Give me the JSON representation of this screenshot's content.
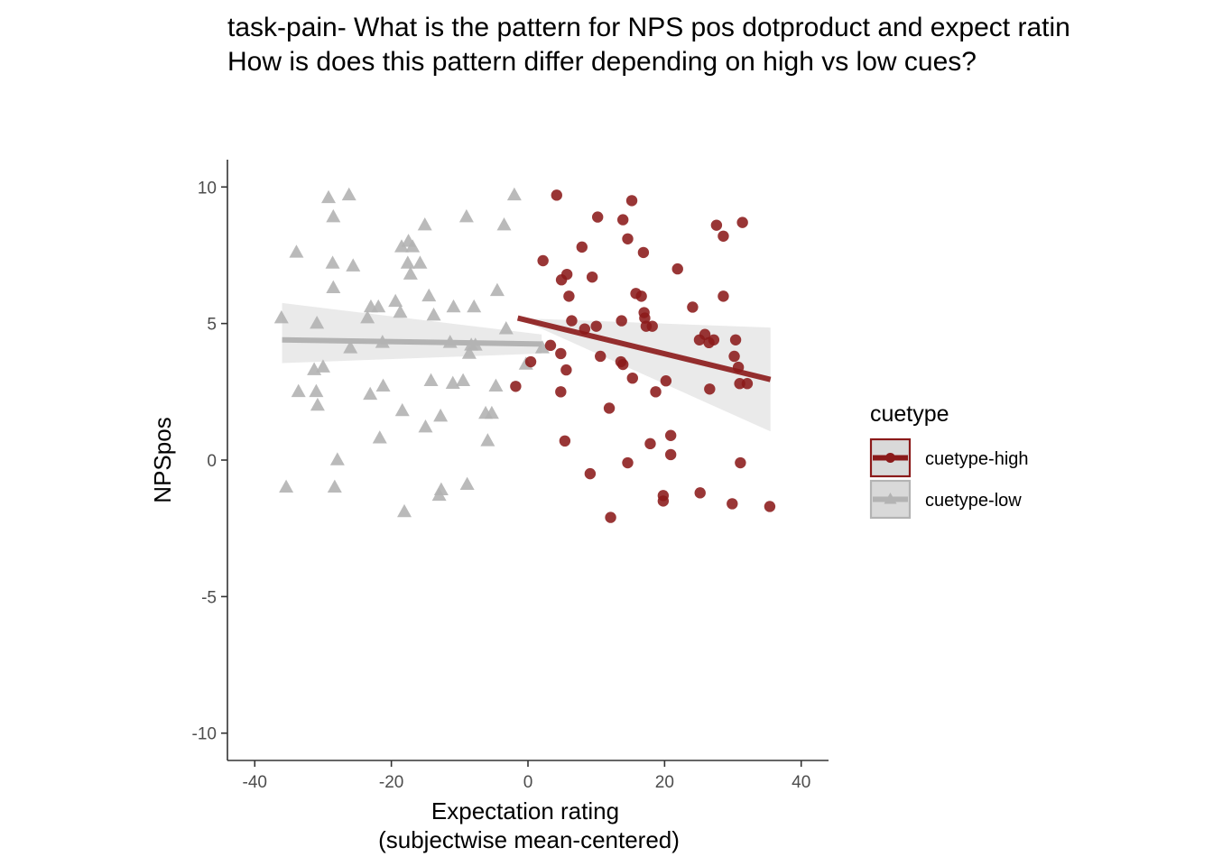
{
  "chart_data": {
    "type": "scatter",
    "title": [
      "task-pain- What is the pattern for NPS pos dotproduct and expect ratin",
      "How is does this pattern differ depending on high vs low cues?"
    ],
    "xlabel": [
      "Expectation rating",
      "(subjectwise mean-centered)"
    ],
    "ylabel": "NPSpos",
    "xlim": [
      -44,
      44
    ],
    "ylim": [
      -11,
      11
    ],
    "x_ticks": [
      -40,
      -20,
      0,
      20,
      40
    ],
    "y_ticks": [
      -10,
      -5,
      0,
      5,
      10
    ],
    "grid": false,
    "legend": {
      "title": "cuetype",
      "position": "right"
    },
    "series": [
      {
        "name": "cuetype-high",
        "marker": "circle",
        "color": "#8b1a1a",
        "fit_line": {
          "x": [
            -1.5,
            35.5
          ],
          "y": [
            5.2,
            2.95
          ]
        },
        "fit_band": {
          "x": [
            -1.5,
            35.5
          ],
          "upper": [
            5.2,
            4.85
          ],
          "lower": [
            5.2,
            1.05
          ]
        },
        "points": [
          [
            4.2,
            9.7
          ],
          [
            15.2,
            9.5
          ],
          [
            10.2,
            8.9
          ],
          [
            13.9,
            8.8
          ],
          [
            27.6,
            8.6
          ],
          [
            31.4,
            8.7
          ],
          [
            14.6,
            8.1
          ],
          [
            28.6,
            8.2
          ],
          [
            7.9,
            7.8
          ],
          [
            16.9,
            7.6
          ],
          [
            2.2,
            7.3
          ],
          [
            21.9,
            7.0
          ],
          [
            5.7,
            6.8
          ],
          [
            4.9,
            6.6
          ],
          [
            9.4,
            6.7
          ],
          [
            6.0,
            6.0
          ],
          [
            15.8,
            6.1
          ],
          [
            16.6,
            6.0
          ],
          [
            28.6,
            6.0
          ],
          [
            24.1,
            5.6
          ],
          [
            17.0,
            5.4
          ],
          [
            17.1,
            5.2
          ],
          [
            6.4,
            5.1
          ],
          [
            13.7,
            5.1
          ],
          [
            17.3,
            4.9
          ],
          [
            8.3,
            4.8
          ],
          [
            10.0,
            4.9
          ],
          [
            18.2,
            4.9
          ],
          [
            25.9,
            4.6
          ],
          [
            25.1,
            4.4
          ],
          [
            26.5,
            4.3
          ],
          [
            27.2,
            4.4
          ],
          [
            30.4,
            4.4
          ],
          [
            3.3,
            4.2
          ],
          [
            4.8,
            3.9
          ],
          [
            10.6,
            3.8
          ],
          [
            30.2,
            3.8
          ],
          [
            0.4,
            3.6
          ],
          [
            13.6,
            3.6
          ],
          [
            13.9,
            3.5
          ],
          [
            30.8,
            3.4
          ],
          [
            5.6,
            3.3
          ],
          [
            15.3,
            3.0
          ],
          [
            20.2,
            2.9
          ],
          [
            31.0,
            2.8
          ],
          [
            32.1,
            2.8
          ],
          [
            -1.8,
            2.7
          ],
          [
            26.6,
            2.6
          ],
          [
            4.8,
            2.5
          ],
          [
            18.7,
            2.5
          ],
          [
            11.9,
            1.9
          ],
          [
            20.9,
            0.9
          ],
          [
            5.4,
            0.7
          ],
          [
            17.9,
            0.6
          ],
          [
            20.9,
            0.2
          ],
          [
            14.6,
            -0.1
          ],
          [
            31.1,
            -0.1
          ],
          [
            9.1,
            -0.5
          ],
          [
            25.2,
            -1.2
          ],
          [
            19.8,
            -1.3
          ],
          [
            19.8,
            -1.5
          ],
          [
            29.9,
            -1.6
          ],
          [
            35.4,
            -1.7
          ],
          [
            12.1,
            -2.1
          ]
        ]
      },
      {
        "name": "cuetype-low",
        "marker": "triangle",
        "color": "#b3b3b3",
        "fit_line": {
          "x": [
            -36,
            2
          ],
          "y": [
            4.4,
            4.25
          ]
        },
        "fit_band": {
          "x": [
            -36,
            2
          ],
          "upper": [
            5.75,
            4.6
          ],
          "lower": [
            3.55,
            3.9
          ]
        },
        "points": [
          [
            -2.0,
            9.7
          ],
          [
            -29.2,
            9.6
          ],
          [
            -26.2,
            9.7
          ],
          [
            -28.5,
            8.9
          ],
          [
            -9.0,
            8.9
          ],
          [
            -15.1,
            8.6
          ],
          [
            -3.5,
            8.6
          ],
          [
            -17.5,
            8.0
          ],
          [
            -18.5,
            7.8
          ],
          [
            -16.9,
            7.8
          ],
          [
            -33.9,
            7.6
          ],
          [
            -28.6,
            7.2
          ],
          [
            -17.6,
            7.2
          ],
          [
            -15.8,
            7.2
          ],
          [
            -25.6,
            7.1
          ],
          [
            -17.2,
            6.8
          ],
          [
            -28.5,
            6.3
          ],
          [
            -4.5,
            6.2
          ],
          [
            -14.5,
            6.0
          ],
          [
            -23.0,
            5.6
          ],
          [
            -21.9,
            5.6
          ],
          [
            -19.4,
            5.8
          ],
          [
            -10.9,
            5.6
          ],
          [
            -7.9,
            5.6
          ],
          [
            -23.5,
            5.2
          ],
          [
            -18.7,
            5.4
          ],
          [
            -36.1,
            5.2
          ],
          [
            -30.9,
            5.0
          ],
          [
            -13.8,
            5.3
          ],
          [
            -3.2,
            4.8
          ],
          [
            -21.3,
            4.3
          ],
          [
            -11.4,
            4.3
          ],
          [
            -26.0,
            4.1
          ],
          [
            -8.3,
            4.2
          ],
          [
            -7.7,
            4.2
          ],
          [
            -8.6,
            3.9
          ],
          [
            -30.0,
            3.4
          ],
          [
            -31.3,
            3.3
          ],
          [
            2.1,
            4.1
          ],
          [
            -0.3,
            3.5
          ],
          [
            -11.0,
            2.8
          ],
          [
            -14.2,
            2.9
          ],
          [
            -9.5,
            2.9
          ],
          [
            -21.2,
            2.7
          ],
          [
            -4.7,
            2.7
          ],
          [
            -33.6,
            2.5
          ],
          [
            -31.0,
            2.5
          ],
          [
            -23.1,
            2.4
          ],
          [
            -30.8,
            2.0
          ],
          [
            -18.4,
            1.8
          ],
          [
            -6.2,
            1.7
          ],
          [
            -12.8,
            1.6
          ],
          [
            -5.3,
            1.7
          ],
          [
            -15.0,
            1.2
          ],
          [
            -21.7,
            0.8
          ],
          [
            -5.9,
            0.7
          ],
          [
            -27.9,
            0.0
          ],
          [
            -35.4,
            -1.0
          ],
          [
            -28.3,
            -1.0
          ],
          [
            -12.7,
            -1.1
          ],
          [
            -13.0,
            -1.3
          ],
          [
            -8.9,
            -0.9
          ],
          [
            -18.1,
            -1.9
          ]
        ]
      }
    ]
  }
}
